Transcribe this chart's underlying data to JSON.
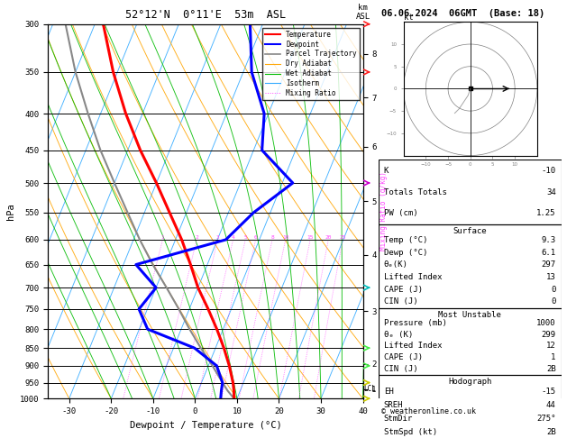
{
  "title_left": "52°12'N  0°11'E  53m  ASL",
  "title_right": "06.06.2024  06GMT  (Base: 18)",
  "xlabel": "Dewpoint / Temperature (°C)",
  "xlim": [
    -35,
    40
  ],
  "pressure_levels": [
    300,
    350,
    400,
    450,
    500,
    550,
    600,
    650,
    700,
    750,
    800,
    850,
    900,
    950,
    1000
  ],
  "xticks": [
    -30,
    -20,
    -10,
    0,
    10,
    20,
    30,
    40
  ],
  "km_labels": [
    "8",
    "7",
    "6",
    "5",
    "4",
    "3",
    "2",
    "1"
  ],
  "km_pressures": [
    330,
    380,
    445,
    530,
    630,
    755,
    895,
    970
  ],
  "temp_color": "#ff0000",
  "dewp_color": "#0000ff",
  "parcel_color": "#888888",
  "dry_adiabat_color": "#ffa500",
  "wet_adiabat_color": "#00bb00",
  "isotherm_color": "#33aaff",
  "mixing_ratio_color": "#ff44ff",
  "mixing_ratios": [
    1,
    2,
    3,
    4,
    5,
    6,
    8,
    10,
    15,
    20,
    25
  ],
  "temp_profile_p": [
    1000,
    975,
    950,
    900,
    850,
    800,
    750,
    700,
    650,
    600,
    550,
    500,
    450,
    400,
    350,
    300
  ],
  "temp_profile_t": [
    9.3,
    8.5,
    7.5,
    5.0,
    2.0,
    -1.5,
    -5.5,
    -10.0,
    -14.0,
    -18.5,
    -24.0,
    -30.0,
    -37.0,
    -44.0,
    -51.0,
    -58.0
  ],
  "dewp_profile_p": [
    1000,
    975,
    950,
    900,
    850,
    800,
    750,
    700,
    650,
    600,
    550,
    500,
    450,
    400,
    350,
    300
  ],
  "dewp_profile_t": [
    6.1,
    5.5,
    5.0,
    2.0,
    -5.0,
    -18.0,
    -22.0,
    -20.0,
    -27.0,
    -8.0,
    -4.0,
    2.5,
    -8.0,
    -11.0,
    -18.0,
    -23.0
  ],
  "parcel_profile_p": [
    1000,
    975,
    950,
    900,
    850,
    800,
    750,
    700,
    650,
    600,
    550,
    500,
    450,
    400,
    350,
    300
  ],
  "parcel_profile_t": [
    9.3,
    7.0,
    5.0,
    1.0,
    -3.5,
    -8.0,
    -12.5,
    -17.5,
    -23.0,
    -28.5,
    -34.0,
    -40.0,
    -46.5,
    -53.0,
    -60.0,
    -67.0
  ],
  "wind_barb_levels": [
    300,
    350,
    500,
    700,
    850,
    900,
    950,
    1000
  ],
  "wind_barb_colors": [
    "#ff2222",
    "#ff2222",
    "#cc00cc",
    "#00bbbb",
    "#44ee44",
    "#44ee44",
    "#cccc00",
    "#cccc00"
  ],
  "info": {
    "K": "-10",
    "Totals_Totals": "34",
    "PW_cm": "1.25",
    "Surface_Temp": "9.3",
    "Surface_Dewp": "6.1",
    "Surface_ThetaE": "297",
    "Surface_LI": "13",
    "Surface_CAPE": "0",
    "Surface_CIN": "0",
    "MU_Pressure": "1000",
    "MU_ThetaE": "299",
    "MU_LI": "12",
    "MU_CAPE": "1",
    "MU_CIN": "2B",
    "EH": "-15",
    "SREH": "44",
    "StmDir": "275°",
    "StmSpd": "2B"
  },
  "hodo_u": [
    0,
    1,
    2,
    3,
    4,
    5,
    6,
    7,
    8
  ],
  "hodo_v": [
    0,
    0,
    0,
    0,
    0,
    0,
    0,
    0,
    0
  ],
  "hodo_spiral_u": [
    0,
    -0.5,
    -1.5,
    -2.5,
    -3.5
  ],
  "hodo_spiral_v": [
    0,
    -1.5,
    -3.0,
    -4.5,
    -5.5
  ]
}
